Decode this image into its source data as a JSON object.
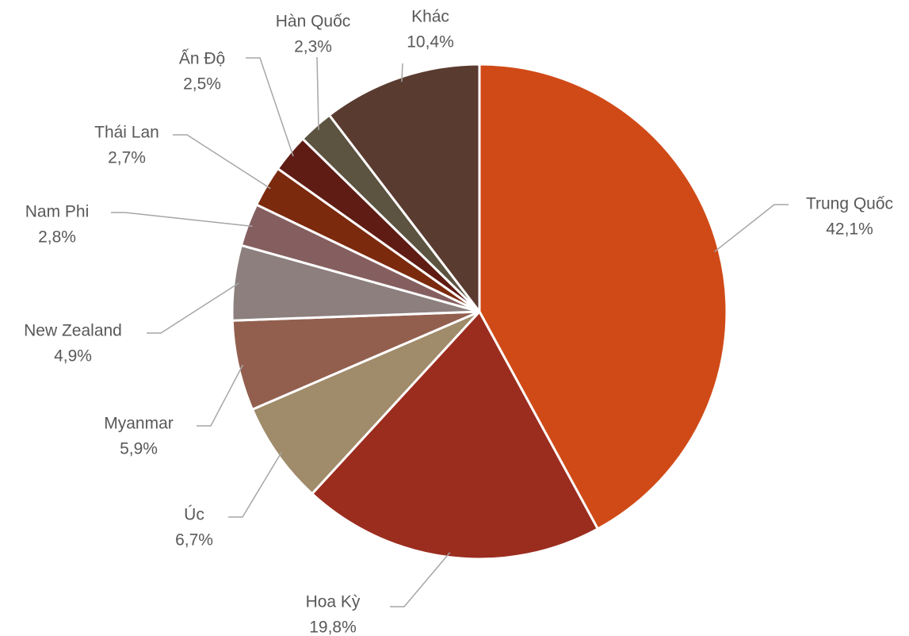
{
  "chart_data": {
    "type": "pie",
    "categories": [
      "Trung Quốc",
      "Hoa Kỳ",
      "Úc",
      "Myanmar",
      "New Zealand",
      "Nam Phi",
      "Thái Lan",
      "Ấn Độ",
      "Hàn Quốc",
      "Khác"
    ],
    "values": [
      42.1,
      19.8,
      6.7,
      5.9,
      4.9,
      2.8,
      2.7,
      2.5,
      2.3,
      10.4
    ],
    "value_labels": [
      "42,1%",
      "19,8%",
      "6,7%",
      "5,9%",
      "4,9%",
      "2,8%",
      "2,7%",
      "2,5%",
      "2,3%",
      "10,4%"
    ],
    "colors": [
      "#d04a17",
      "#9b2d1f",
      "#a08b6a",
      "#925f4f",
      "#8c7f7d",
      "#855f5f",
      "#7b2a0e",
      "#5f1c15",
      "#5c5340",
      "#5a3b30"
    ]
  }
}
